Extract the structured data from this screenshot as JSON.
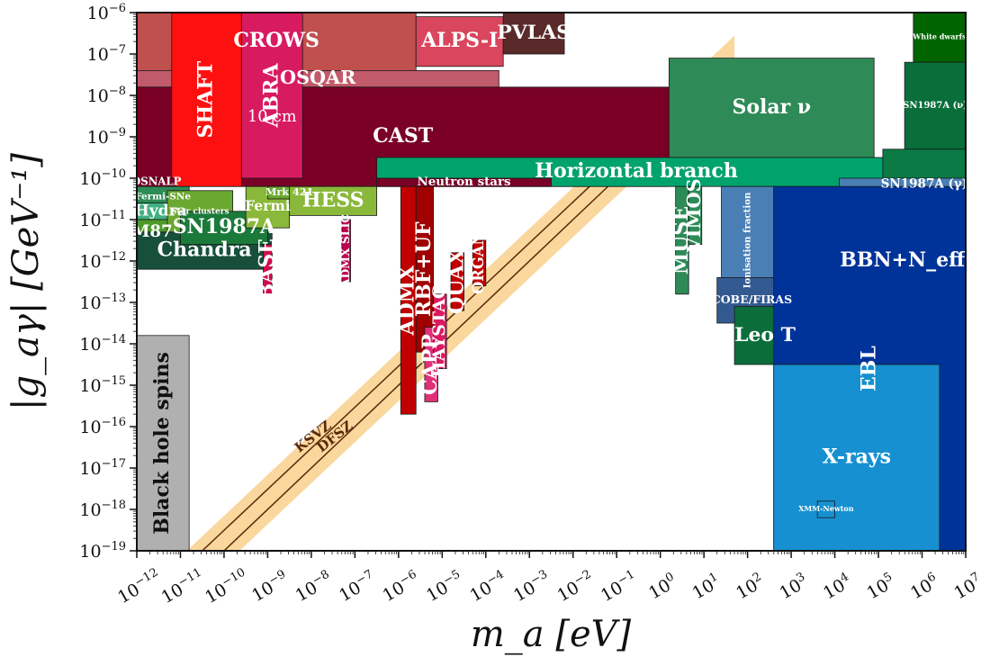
{
  "chart_data": {
    "type": "area",
    "xlabel": "m_a [eV]",
    "ylabel": "|g_aγ| [GeV⁻¹]",
    "x_scale": "log",
    "y_scale": "log",
    "xlim_exponent": [
      -12,
      7
    ],
    "ylim_exponent": [
      -19,
      -6
    ],
    "x_tick_exponents": [
      -12,
      -11,
      -10,
      -9,
      -8,
      -7,
      -6,
      -5,
      -4,
      -3,
      -2,
      -1,
      0,
      1,
      2,
      3,
      4,
      5,
      6,
      7
    ],
    "y_tick_exponents": [
      -19,
      -18,
      -17,
      -16,
      -15,
      -14,
      -13,
      -12,
      -11,
      -10,
      -9,
      -8,
      -7,
      -6
    ],
    "tick_base": "10",
    "grid": false,
    "colors": {
      "helioscope_dark": "#7a0026",
      "haloscope_red": "#c00000",
      "astro_green": "#0b8a56",
      "solar_green": "#2e8b57",
      "hb_green": "#009e73",
      "ebl_blue": "#003399",
      "xray_blue": "#1690d0",
      "bbn_blue": "#4a7fb5",
      "qcd_band": "#f5a623",
      "bh_gray": "#b0b0b0"
    },
    "qcd_models": [
      {
        "name": "KSVZ",
        "log_g_at_log_m": [
          [
            -10.5,
            -19
          ],
          [
            1,
            -7.6
          ]
        ]
      },
      {
        "name": "DFSZ",
        "log_g_at_log_m": [
          [
            -10,
            -19
          ],
          [
            1,
            -8.0
          ]
        ]
      }
    ],
    "regions": [
      {
        "label": "CROWS",
        "color": "#c0504d",
        "log_m_range": [
          -12,
          -5.6
        ],
        "log_g_range": [
          -7.4,
          -6
        ]
      },
      {
        "label": "ALPS-I",
        "color": "#d9465d",
        "log_m_range": [
          -5.6,
          -3.6
        ],
        "log_g_range": [
          -7.3,
          -6.1
        ]
      },
      {
        "label": "PVLAS",
        "color": "#5a2a2a",
        "log_m_range": [
          -3.6,
          -2.2
        ],
        "log_g_range": [
          -7.0,
          -6
        ]
      },
      {
        "label": "OSQAR",
        "color": "#c15a6a",
        "log_m_range": [
          -12,
          -3.7
        ],
        "log_g_range": [
          -7.8,
          -7.4
        ]
      },
      {
        "label": "CAST",
        "color": "#7a0026",
        "log_m_range": [
          -12,
          0.2
        ],
        "log_g_range": [
          -10.2,
          -7.8
        ]
      },
      {
        "label": "SHAFT",
        "color": "#ff1010",
        "log_m_range": [
          -11.2,
          -9.6
        ],
        "log_g_range": [
          -10.2,
          -6
        ]
      },
      {
        "label": "ABRA",
        "sublabel": "10 cm",
        "color": "#d81b60",
        "log_m_range": [
          -9.6,
          -8.2
        ],
        "log_g_range": [
          -10.0,
          -6
        ]
      },
      {
        "label": "Solar ν",
        "color": "#2e8b57",
        "log_m_range": [
          0.2,
          4.9
        ],
        "log_g_range": [
          -9.5,
          -7.1
        ]
      },
      {
        "label": "Horizontal branch",
        "color": "#00a36c",
        "log_m_range": [
          -6.5,
          5.4
        ],
        "log_g_range": [
          -10.2,
          -9.5
        ]
      },
      {
        "label": "White dwarfs",
        "color": "#006400",
        "log_m_range": [
          5.8,
          7
        ],
        "log_g_range": [
          -7.2,
          -6
        ]
      },
      {
        "label": "SN1987A (ν)",
        "color": "#0a6e3a",
        "log_m_range": [
          5.6,
          7
        ],
        "log_g_range": [
          -9.3,
          -7.2
        ]
      },
      {
        "label": "SN1987A (γ)",
        "color": "#0b7a45",
        "log_m_range": [
          5.1,
          7
        ],
        "log_g_range": [
          -11.0,
          -9.3
        ]
      },
      {
        "label": "Neutron stars",
        "color": "#7a0026",
        "log_m_range": [
          -6.5,
          -2.5
        ],
        "log_g_range": [
          -10.2,
          -10.0
        ]
      },
      {
        "label": "DSNALP",
        "color": "#7a0026",
        "log_m_range": [
          -12,
          -11.1
        ],
        "log_g_range": [
          -10.2,
          -10.0
        ]
      },
      {
        "label": "Fermi-SNe",
        "color": "#2e8b57",
        "log_m_range": [
          -12,
          -10.8
        ],
        "log_g_range": [
          -10.7,
          -10.2
        ]
      },
      {
        "label": "Hydra",
        "color": "#40b080",
        "log_m_range": [
          -12,
          -10.9
        ],
        "log_g_range": [
          -11.0,
          -10.6
        ]
      },
      {
        "label": "M87",
        "color": "#4c9a2a",
        "log_m_range": [
          -12,
          -11.3
        ],
        "log_g_range": [
          -11.6,
          -11.0
        ]
      },
      {
        "label": "Chandra",
        "color": "#174f3b",
        "log_m_range": [
          -12,
          -8.9
        ],
        "log_g_range": [
          -12.2,
          -11.3
        ]
      },
      {
        "label": "Star clusters",
        "color": "#6aa830",
        "log_m_range": [
          -11.3,
          -9.8
        ],
        "log_g_range": [
          -11.3,
          -10.3
        ]
      },
      {
        "label": "SN1987A",
        "color": "#1b7a3a",
        "log_m_range": [
          -11.0,
          -9.0
        ],
        "log_g_range": [
          -11.6,
          -10.8
        ]
      },
      {
        "label": "Fermi",
        "color": "#8ab83a",
        "log_m_range": [
          -9.5,
          -8.5
        ],
        "log_g_range": [
          -11.2,
          -10.2
        ]
      },
      {
        "label": "Mrk 421",
        "color": "#6aa830",
        "log_m_range": [
          -9.0,
          -8.0
        ],
        "log_g_range": [
          -10.5,
          -10.2
        ]
      },
      {
        "label": "HESS",
        "color": "#8ab83a",
        "log_m_range": [
          -8.5,
          -6.5
        ],
        "log_g_range": [
          -10.9,
          -10.2
        ]
      },
      {
        "label": "MUSE",
        "color": "#2e8b57",
        "log_m_range": [
          0.35,
          0.65
        ],
        "log_g_range": [
          -12.8,
          -10.2
        ]
      },
      {
        "label": "VIMOS",
        "color": "#2e8b57",
        "log_m_range": [
          0.65,
          0.95
        ],
        "log_g_range": [
          -11.6,
          -10.2
        ]
      },
      {
        "label": "Ionisation fraction",
        "color": "#4a7fb5",
        "log_m_range": [
          1.4,
          2.6
        ],
        "log_g_range": [
          -12.8,
          -10.2
        ]
      },
      {
        "label": "COBE/FIRAS",
        "color": "#335a90",
        "log_m_range": [
          1.3,
          2.9
        ],
        "log_g_range": [
          -13.5,
          -12.4
        ]
      },
      {
        "label": "Leo T",
        "color": "#0b6e3a",
        "log_m_range": [
          1.7,
          3.1
        ],
        "log_g_range": [
          -14.5,
          -13.1
        ]
      },
      {
        "label": "BBN+N_eff",
        "color": "#4a7fb5",
        "log_m_range": [
          4.1,
          7
        ],
        "log_g_range": [
          -14.0,
          -10.0
        ]
      },
      {
        "label": "EBL",
        "color": "#003399",
        "log_m_range": [
          2.6,
          7
        ],
        "log_g_range": [
          -19,
          -10.2
        ]
      },
      {
        "label": "X-rays",
        "color": "#1690d0",
        "log_m_range": [
          2.6,
          6.4
        ],
        "log_g_range": [
          -19,
          -14.5
        ]
      },
      {
        "label": "XMM-Newton",
        "color": "#1690d0",
        "log_m_range": [
          3.6,
          4.0
        ],
        "log_g_range": [
          -18.2,
          -17.8
        ]
      },
      {
        "label": "Black hole spins",
        "color": "#b0b0b0",
        "log_m_range": [
          -12,
          -10.8
        ],
        "log_g_range": [
          -19,
          -13.8
        ]
      },
      {
        "label": "ADMX",
        "color": "#c00000",
        "log_m_range": [
          -5.95,
          -5.6
        ],
        "log_g_range": [
          -15.7,
          -10.2
        ]
      },
      {
        "label": "RBF+UF",
        "color": "#a00000",
        "log_m_range": [
          -5.6,
          -5.2
        ],
        "log_g_range": [
          -14.2,
          -10.2
        ]
      },
      {
        "label": "CAPP",
        "color": "#e0307a",
        "log_m_range": [
          -5.4,
          -5.1
        ],
        "log_g_range": [
          -15.4,
          -13.6
        ]
      },
      {
        "label": "HAYSTAC",
        "color": "#d81b60",
        "log_m_range": [
          -5.2,
          -4.9
        ],
        "log_g_range": [
          -14.6,
          -12.8
        ]
      },
      {
        "label": "QUAX",
        "color": "#c00000",
        "log_m_range": [
          -4.8,
          -4.5
        ],
        "log_g_range": [
          -13.2,
          -11.8
        ]
      },
      {
        "label": "ORGAN",
        "color": "#c00000",
        "log_m_range": [
          -4.3,
          -4.0
        ],
        "log_g_range": [
          -12.6,
          -11.5
        ]
      },
      {
        "label": "ADMX SLIC",
        "color": "#c00050",
        "log_m_range": [
          -7.3,
          -7.1
        ],
        "log_g_range": [
          -12.5,
          -11.0
        ]
      },
      {
        "label": "BASE",
        "color": "#d0104c",
        "log_m_range": [
          -9.1,
          -8.9
        ],
        "log_g_range": [
          -12.8,
          -11.6
        ]
      }
    ]
  }
}
